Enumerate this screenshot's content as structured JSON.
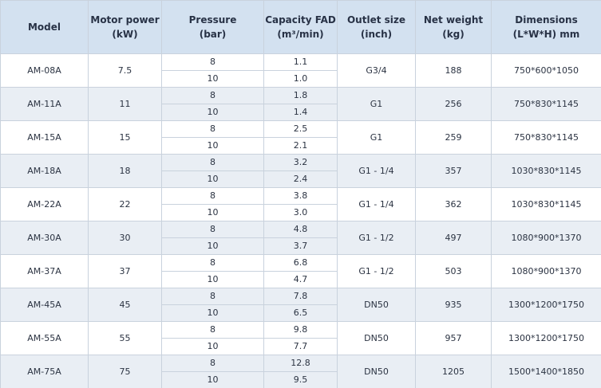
{
  "table": {
    "header": [
      [
        "Model"
      ],
      [
        "Motor power",
        "(kW)"
      ],
      [
        "Pressure",
        "(bar)"
      ],
      [
        "Capacity FAD",
        "(m³/min)"
      ],
      [
        "Outlet size",
        "(inch)"
      ],
      [
        "Net weight",
        "(kg)"
      ],
      [
        "Dimensions",
        "(L*W*H) mm"
      ]
    ],
    "rows": [
      {
        "model": "AM-08A",
        "power": "7.5",
        "pressure": [
          "8",
          "10"
        ],
        "capacity": [
          "1.1",
          "1.0"
        ],
        "outlet": "G3/4",
        "weight": "188",
        "dimensions": "750*600*1050"
      },
      {
        "model": "AM-11A",
        "power": "11",
        "pressure": [
          "8",
          "10"
        ],
        "capacity": [
          "1.8",
          "1.4"
        ],
        "outlet": "G1",
        "weight": "256",
        "dimensions": "750*830*1145"
      },
      {
        "model": "AM-15A",
        "power": "15",
        "pressure": [
          "8",
          "10"
        ],
        "capacity": [
          "2.5",
          "2.1"
        ],
        "outlet": "G1",
        "weight": "259",
        "dimensions": "750*830*1145"
      },
      {
        "model": "AM-18A",
        "power": "18",
        "pressure": [
          "8",
          "10"
        ],
        "capacity": [
          "3.2",
          "2.4"
        ],
        "outlet": "G1 - 1/4",
        "weight": "357",
        "dimensions": "1030*830*1145"
      },
      {
        "model": "AM-22A",
        "power": "22",
        "pressure": [
          "8",
          "10"
        ],
        "capacity": [
          "3.8",
          "3.0"
        ],
        "outlet": "G1 - 1/4",
        "weight": "362",
        "dimensions": "1030*830*1145"
      },
      {
        "model": "AM-30A",
        "power": "30",
        "pressure": [
          "8",
          "10"
        ],
        "capacity": [
          "4.8",
          "3.7"
        ],
        "outlet": "G1 - 1/2",
        "weight": "497",
        "dimensions": "1080*900*1370"
      },
      {
        "model": "AM-37A",
        "power": "37",
        "pressure": [
          "8",
          "10"
        ],
        "capacity": [
          "6.8",
          "4.7"
        ],
        "outlet": "G1 - 1/2",
        "weight": "503",
        "dimensions": "1080*900*1370"
      },
      {
        "model": "AM-45A",
        "power": "45",
        "pressure": [
          "8",
          "10"
        ],
        "capacity": [
          "7.8",
          "6.5"
        ],
        "outlet": "DN50",
        "weight": "935",
        "dimensions": "1300*1200*1750"
      },
      {
        "model": "AM-55A",
        "power": "55",
        "pressure": [
          "8",
          "10"
        ],
        "capacity": [
          "9.8",
          "7.7"
        ],
        "outlet": "DN50",
        "weight": "957",
        "dimensions": "1300*1200*1750"
      },
      {
        "model": "AM-75A",
        "power": "75",
        "pressure": [
          "8",
          "10"
        ],
        "capacity": [
          "12.8",
          "9.5"
        ],
        "outlet": "DN50",
        "weight": "1205",
        "dimensions": "1500*1400*1850"
      }
    ]
  }
}
